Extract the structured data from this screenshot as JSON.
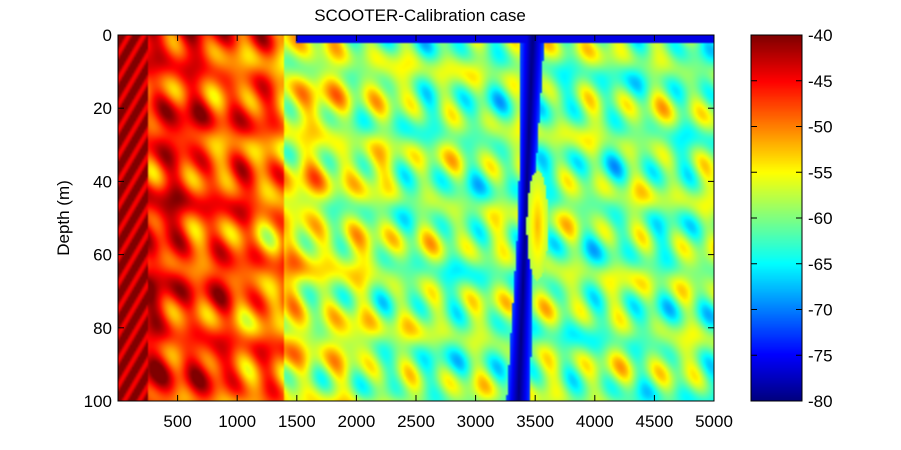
{
  "chart_data": {
    "type": "heatmap",
    "title": "SCOOTER-Calibration case",
    "xlabel": "",
    "ylabel": "Depth (m)",
    "xlim": [
      0,
      5000
    ],
    "ylim": [
      0,
      100
    ],
    "y_reversed": true,
    "x_ticks": [
      500,
      1000,
      1500,
      2000,
      2500,
      3000,
      3500,
      4000,
      4500,
      5000
    ],
    "y_ticks": [
      0,
      20,
      40,
      60,
      80,
      100
    ],
    "colorbar": {
      "colormap": "jet",
      "clim": [
        -80,
        -40
      ],
      "ticks": [
        -40,
        -45,
        -50,
        -55,
        -60,
        -65,
        -70,
        -75,
        -80
      ]
    },
    "features": [
      {
        "description": "high-level region near source (left side)",
        "range_m": [
          0,
          1500
        ],
        "level_db": -45
      },
      {
        "description": "interference pattern of transmission loss",
        "range_m": [
          1500,
          5000
        ],
        "level_db": -60
      },
      {
        "description": "low-level null band",
        "range_m": [
          3350,
          3550
        ],
        "level_db": -80
      },
      {
        "description": "focusing hotspot",
        "range_m": 3520,
        "depth_m": 52,
        "level_db": -52
      }
    ]
  }
}
